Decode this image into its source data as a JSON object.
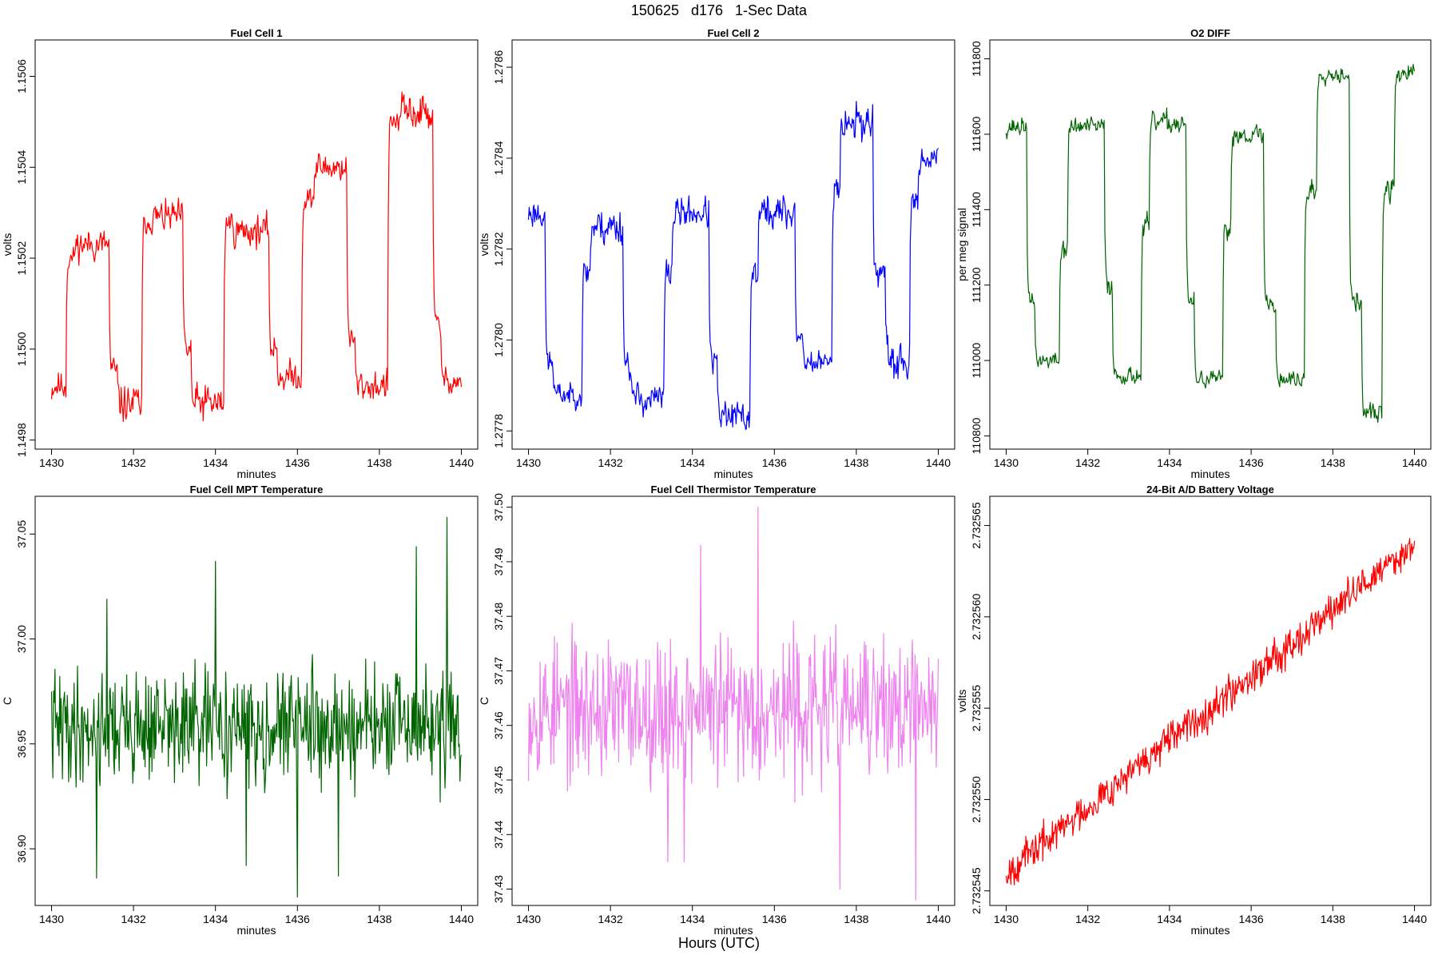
{
  "page": {
    "title": "150625   d176   1-Sec Data",
    "footer": "Hours (UTC)"
  },
  "chart_data": [
    {
      "type": "line",
      "title": "Fuel Cell 1",
      "xlabel": "minutes",
      "ylabel": "volts",
      "color": "#ff0000",
      "xlim": [
        1429.6,
        1440.4
      ],
      "ylim": [
        1.14978,
        1.15068
      ],
      "xticks": [
        1430,
        1432,
        1434,
        1436,
        1438,
        1440
      ],
      "yticks": [
        1.1498,
        1.15,
        1.1502,
        1.1504,
        1.1506
      ],
      "ytick_labels": [
        "1.1498",
        "1.1500",
        "1.1502",
        "1.1504",
        "1.1506"
      ],
      "segments": [
        {
          "t0": 1430.0,
          "t1": 1430.35,
          "v": 1.14992,
          "noise": 4e-05
        },
        {
          "t0": 1430.35,
          "t1": 1430.55,
          "v": 1.1502,
          "noise": 3e-05
        },
        {
          "t0": 1430.55,
          "t1": 1431.4,
          "v": 1.15023,
          "noise": 4e-05
        },
        {
          "t0": 1431.4,
          "t1": 1431.6,
          "v": 1.14995,
          "noise": 4e-05
        },
        {
          "t0": 1431.6,
          "t1": 1432.2,
          "v": 1.14988,
          "noise": 5e-05
        },
        {
          "t0": 1432.2,
          "t1": 1432.4,
          "v": 1.15028,
          "noise": 3e-05
        },
        {
          "t0": 1432.4,
          "t1": 1433.2,
          "v": 1.15029,
          "noise": 4e-05
        },
        {
          "t0": 1433.2,
          "t1": 1433.4,
          "v": 1.15,
          "noise": 4e-05
        },
        {
          "t0": 1433.4,
          "t1": 1434.2,
          "v": 1.14988,
          "noise": 5e-05
        },
        {
          "t0": 1434.2,
          "t1": 1434.4,
          "v": 1.15028,
          "noise": 3e-05
        },
        {
          "t0": 1434.4,
          "t1": 1435.3,
          "v": 1.15026,
          "noise": 4e-05
        },
        {
          "t0": 1435.3,
          "t1": 1435.5,
          "v": 1.15,
          "noise": 4e-05
        },
        {
          "t0": 1435.5,
          "t1": 1436.1,
          "v": 1.14994,
          "noise": 4e-05
        },
        {
          "t0": 1436.1,
          "t1": 1436.4,
          "v": 1.15033,
          "noise": 3e-05
        },
        {
          "t0": 1436.4,
          "t1": 1437.2,
          "v": 1.1504,
          "noise": 4e-05
        },
        {
          "t0": 1437.2,
          "t1": 1437.4,
          "v": 1.15002,
          "noise": 3e-05
        },
        {
          "t0": 1437.4,
          "t1": 1438.2,
          "v": 1.14992,
          "noise": 4e-05
        },
        {
          "t0": 1438.2,
          "t1": 1438.5,
          "v": 1.1505,
          "noise": 3e-05
        },
        {
          "t0": 1438.5,
          "t1": 1439.3,
          "v": 1.15052,
          "noise": 5e-05
        },
        {
          "t0": 1439.3,
          "t1": 1439.5,
          "v": 1.15005,
          "noise": 4e-05
        },
        {
          "t0": 1439.5,
          "t1": 1440.0,
          "v": 1.14993,
          "noise": 3e-05
        }
      ],
      "seed": 11
    },
    {
      "type": "line",
      "title": "Fuel Cell 2",
      "xlabel": "minutes",
      "ylabel": "volts",
      "color": "#0000ff",
      "xlim": [
        1429.6,
        1440.4
      ],
      "ylim": [
        1.27776,
        1.27866
      ],
      "xticks": [
        1430,
        1432,
        1434,
        1436,
        1438,
        1440
      ],
      "yticks": [
        1.2778,
        1.278,
        1.2782,
        1.2784,
        1.2786
      ],
      "ytick_labels": [
        "1.2778",
        "1.2780",
        "1.2782",
        "1.2784",
        "1.2786"
      ],
      "segments": [
        {
          "t0": 1430.0,
          "t1": 1430.4,
          "v": 1.27828,
          "noise": 4e-05
        },
        {
          "t0": 1430.4,
          "t1": 1430.6,
          "v": 1.27795,
          "noise": 4e-05
        },
        {
          "t0": 1430.6,
          "t1": 1431.3,
          "v": 1.27788,
          "noise": 3e-05
        },
        {
          "t0": 1431.3,
          "t1": 1431.5,
          "v": 1.27815,
          "noise": 4e-05
        },
        {
          "t0": 1431.5,
          "t1": 1432.3,
          "v": 1.27825,
          "noise": 5e-05
        },
        {
          "t0": 1432.3,
          "t1": 1432.5,
          "v": 1.27795,
          "noise": 4e-05
        },
        {
          "t0": 1432.5,
          "t1": 1433.3,
          "v": 1.27787,
          "noise": 4e-05
        },
        {
          "t0": 1433.3,
          "t1": 1433.5,
          "v": 1.27815,
          "noise": 4e-05
        },
        {
          "t0": 1433.5,
          "t1": 1434.4,
          "v": 1.27828,
          "noise": 4e-05
        },
        {
          "t0": 1434.4,
          "t1": 1434.6,
          "v": 1.27795,
          "noise": 4e-05
        },
        {
          "t0": 1434.6,
          "t1": 1435.4,
          "v": 1.27783,
          "noise": 4e-05
        },
        {
          "t0": 1435.4,
          "t1": 1435.6,
          "v": 1.27815,
          "noise": 4e-05
        },
        {
          "t0": 1435.6,
          "t1": 1436.5,
          "v": 1.27828,
          "noise": 5e-05
        },
        {
          "t0": 1436.5,
          "t1": 1436.7,
          "v": 1.278,
          "noise": 3e-05
        },
        {
          "t0": 1436.7,
          "t1": 1437.4,
          "v": 1.27795,
          "noise": 3e-05
        },
        {
          "t0": 1437.4,
          "t1": 1437.6,
          "v": 1.27835,
          "noise": 4e-05
        },
        {
          "t0": 1437.6,
          "t1": 1438.4,
          "v": 1.27848,
          "noise": 5e-05
        },
        {
          "t0": 1438.4,
          "t1": 1438.7,
          "v": 1.27815,
          "noise": 4e-05
        },
        {
          "t0": 1438.7,
          "t1": 1439.3,
          "v": 1.27795,
          "noise": 5e-05
        },
        {
          "t0": 1439.3,
          "t1": 1439.5,
          "v": 1.2783,
          "noise": 3e-05
        },
        {
          "t0": 1439.5,
          "t1": 1440.0,
          "v": 1.2784,
          "noise": 3e-05
        }
      ],
      "seed": 23
    },
    {
      "type": "line",
      "title": "O2 DIFF",
      "xlabel": "minutes",
      "ylabel": "per meg signal",
      "color": "#006400",
      "xlim": [
        1429.6,
        1440.4
      ],
      "ylim": [
        110765,
        111850
      ],
      "xticks": [
        1430,
        1432,
        1434,
        1436,
        1438,
        1440
      ],
      "yticks": [
        110800,
        111000,
        111200,
        111400,
        111600,
        111800
      ],
      "ytick_labels": [
        "110800",
        "111000",
        "111200",
        "111400",
        "111600",
        "111800"
      ],
      "segments": [
        {
          "t0": 1430.0,
          "t1": 1430.5,
          "v": 111620,
          "noise": 30
        },
        {
          "t0": 1430.5,
          "t1": 1430.7,
          "v": 111150,
          "noise": 30
        },
        {
          "t0": 1430.7,
          "t1": 1431.3,
          "v": 111000,
          "noise": 25
        },
        {
          "t0": 1431.3,
          "t1": 1431.5,
          "v": 111300,
          "noise": 40
        },
        {
          "t0": 1431.5,
          "t1": 1432.4,
          "v": 111620,
          "noise": 30
        },
        {
          "t0": 1432.4,
          "t1": 1432.6,
          "v": 111200,
          "noise": 40
        },
        {
          "t0": 1432.6,
          "t1": 1433.3,
          "v": 110960,
          "noise": 25
        },
        {
          "t0": 1433.3,
          "t1": 1433.5,
          "v": 111350,
          "noise": 40
        },
        {
          "t0": 1433.5,
          "t1": 1434.4,
          "v": 111630,
          "noise": 35
        },
        {
          "t0": 1434.4,
          "t1": 1434.6,
          "v": 111150,
          "noise": 40
        },
        {
          "t0": 1434.6,
          "t1": 1435.3,
          "v": 110950,
          "noise": 25
        },
        {
          "t0": 1435.3,
          "t1": 1435.5,
          "v": 111350,
          "noise": 40
        },
        {
          "t0": 1435.5,
          "t1": 1436.3,
          "v": 111600,
          "noise": 30
        },
        {
          "t0": 1436.3,
          "t1": 1436.6,
          "v": 111150,
          "noise": 40
        },
        {
          "t0": 1436.6,
          "t1": 1437.3,
          "v": 110950,
          "noise": 30
        },
        {
          "t0": 1437.3,
          "t1": 1437.6,
          "v": 111450,
          "noise": 40
        },
        {
          "t0": 1437.6,
          "t1": 1438.4,
          "v": 111760,
          "noise": 25
        },
        {
          "t0": 1438.4,
          "t1": 1438.7,
          "v": 111150,
          "noise": 40
        },
        {
          "t0": 1438.7,
          "t1": 1439.2,
          "v": 110860,
          "noise": 30
        },
        {
          "t0": 1439.2,
          "t1": 1439.5,
          "v": 111450,
          "noise": 40
        },
        {
          "t0": 1439.5,
          "t1": 1440.0,
          "v": 111760,
          "noise": 30
        }
      ],
      "seed": 37
    },
    {
      "type": "line",
      "title": "Fuel Cell MPT Temperature",
      "xlabel": "minutes",
      "ylabel": "C",
      "color": "#006400",
      "xlim": [
        1429.6,
        1440.4
      ],
      "ylim": [
        36.873,
        37.068
      ],
      "xticks": [
        1430,
        1432,
        1434,
        1436,
        1438,
        1440
      ],
      "yticks": [
        36.9,
        36.95,
        37.0,
        37.05
      ],
      "ytick_labels": [
        "36.90",
        "36.95",
        "37.00",
        "37.05"
      ],
      "segments": [
        {
          "t0": 1430.0,
          "t1": 1440.0,
          "v": 36.958,
          "noise": 0.022
        }
      ],
      "spikes": [
        {
          "t": 1431.1,
          "v": 36.886
        },
        {
          "t": 1431.35,
          "v": 37.019
        },
        {
          "t": 1434.0,
          "v": 37.037
        },
        {
          "t": 1434.75,
          "v": 36.892
        },
        {
          "t": 1436.0,
          "v": 36.877
        },
        {
          "t": 1437.0,
          "v": 36.887
        },
        {
          "t": 1438.9,
          "v": 37.044
        },
        {
          "t": 1439.65,
          "v": 37.058
        }
      ],
      "seed": 41
    },
    {
      "type": "line",
      "title": "Fuel Cell Thermistor Temperature",
      "xlabel": "minutes",
      "ylabel": "C",
      "color": "#ee82ee",
      "xlim": [
        1429.6,
        1440.4
      ],
      "ylim": [
        37.427,
        37.502
      ],
      "xticks": [
        1430,
        1432,
        1434,
        1436,
        1438,
        1440
      ],
      "yticks": [
        37.43,
        37.44,
        37.45,
        37.46,
        37.47,
        37.48,
        37.49,
        37.5
      ],
      "ytick_labels": [
        "37.43",
        "37.44",
        "37.45",
        "37.46",
        "37.47",
        "37.48",
        "37.49",
        "37.50"
      ],
      "segments": [
        {
          "t0": 1430.0,
          "t1": 1440.0,
          "v": 37.463,
          "noise": 0.0105
        }
      ],
      "spikes": [
        {
          "t": 1433.4,
          "v": 37.435
        },
        {
          "t": 1433.8,
          "v": 37.435
        },
        {
          "t": 1435.6,
          "v": 37.5
        },
        {
          "t": 1437.6,
          "v": 37.43
        },
        {
          "t": 1439.45,
          "v": 37.428
        },
        {
          "t": 1434.2,
          "v": 37.493
        }
      ],
      "seed": 53
    },
    {
      "type": "line",
      "title": "24-Bit A/D Battery Voltage",
      "xlabel": "minutes",
      "ylabel": "volts",
      "color": "#ff0000",
      "xlim": [
        1429.6,
        1440.4
      ],
      "ylim": [
        2.7325442,
        2.7325666
      ],
      "xticks": [
        1430,
        1432,
        1434,
        1436,
        1438,
        1440
      ],
      "yticks": [
        2.732545,
        2.73255,
        2.732555,
        2.73256,
        2.732565
      ],
      "ytick_labels": [
        "2.732545",
        "2.732550",
        "2.732555",
        "2.732560",
        "2.732565"
      ],
      "segments": [
        {
          "t0": 1430.0,
          "t1": 1440.0,
          "v": 2.732546,
          "v_end": 2.732564,
          "noise": 8e-07
        }
      ],
      "seed": 67
    }
  ]
}
